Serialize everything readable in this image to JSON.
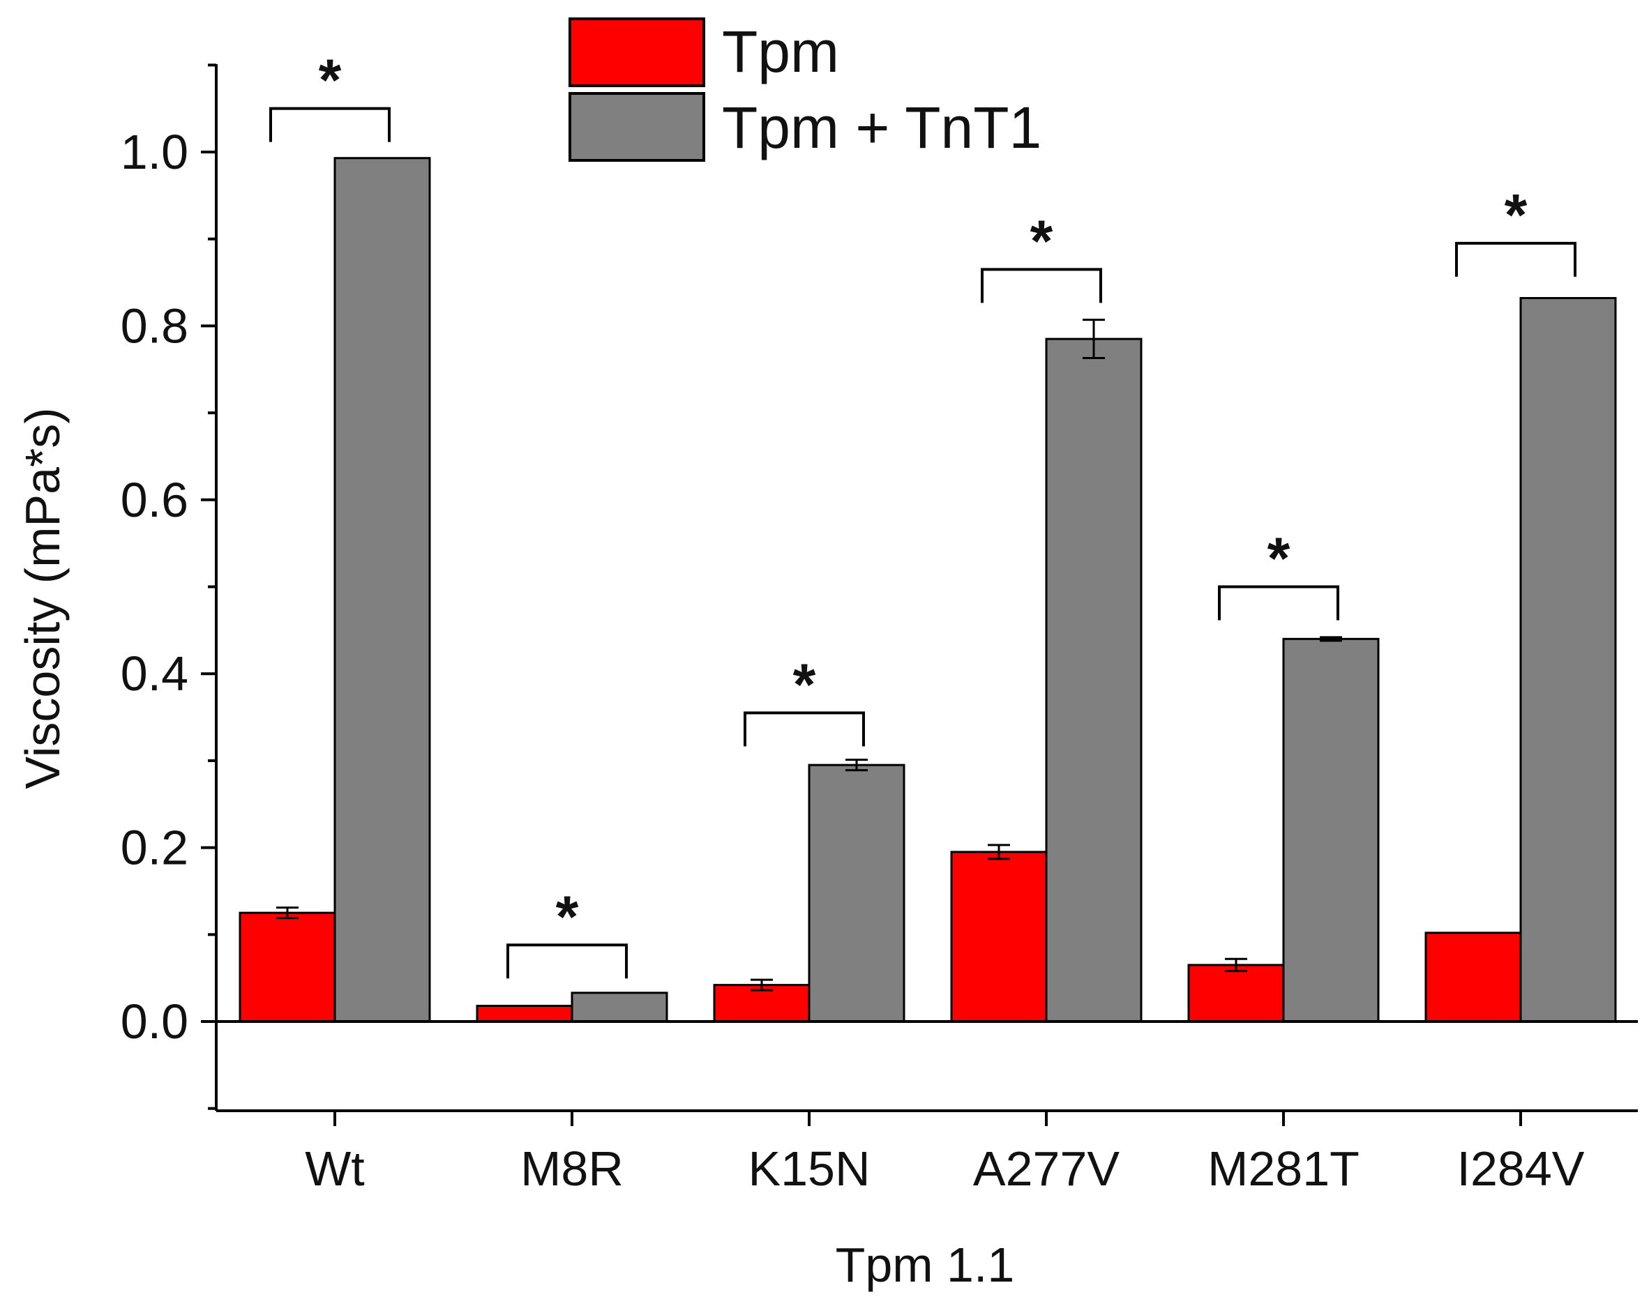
{
  "chart_data": {
    "type": "bar",
    "title": "",
    "xlabel": "Tpm 1.1",
    "ylabel": "Viscosity (mPa*s)",
    "ylim": [
      -0.1,
      1.1
    ],
    "yticks": [
      0.0,
      0.2,
      0.4,
      0.6,
      0.8,
      1.0
    ],
    "ytick_labels": [
      "0.0",
      "0.2",
      "0.4",
      "0.6",
      "0.8",
      "1.0"
    ],
    "categories": [
      "Wt",
      "M8R",
      "K15N",
      "A277V",
      "M281T",
      "I284V"
    ],
    "series": [
      {
        "name": "Tpm",
        "color": "#ff0000",
        "values": [
          0.125,
          0.018,
          0.042,
          0.195,
          0.065,
          0.102
        ],
        "errors": [
          0.006,
          0.0,
          0.006,
          0.008,
          0.007,
          0.0
        ]
      },
      {
        "name": "Tpm + TnT1",
        "color": "#808080",
        "values": [
          0.993,
          0.033,
          0.295,
          0.785,
          0.44,
          0.832
        ],
        "errors": [
          0.0,
          0.0,
          0.006,
          0.022,
          0.002,
          0.0
        ]
      }
    ],
    "significance": [
      {
        "category": "Wt",
        "label": "*",
        "bracket_level": 1.05
      },
      {
        "category": "M8R",
        "label": "*",
        "bracket_level": 0.088
      },
      {
        "category": "K15N",
        "label": "*",
        "bracket_level": 0.355
      },
      {
        "category": "A277V",
        "label": "*",
        "bracket_level": 0.865
      },
      {
        "category": "M281T",
        "label": "*",
        "bracket_level": 0.5
      },
      {
        "category": "I284V",
        "label": "*",
        "bracket_level": 0.895
      }
    ],
    "legend_position": "top-center",
    "grid": false
  }
}
